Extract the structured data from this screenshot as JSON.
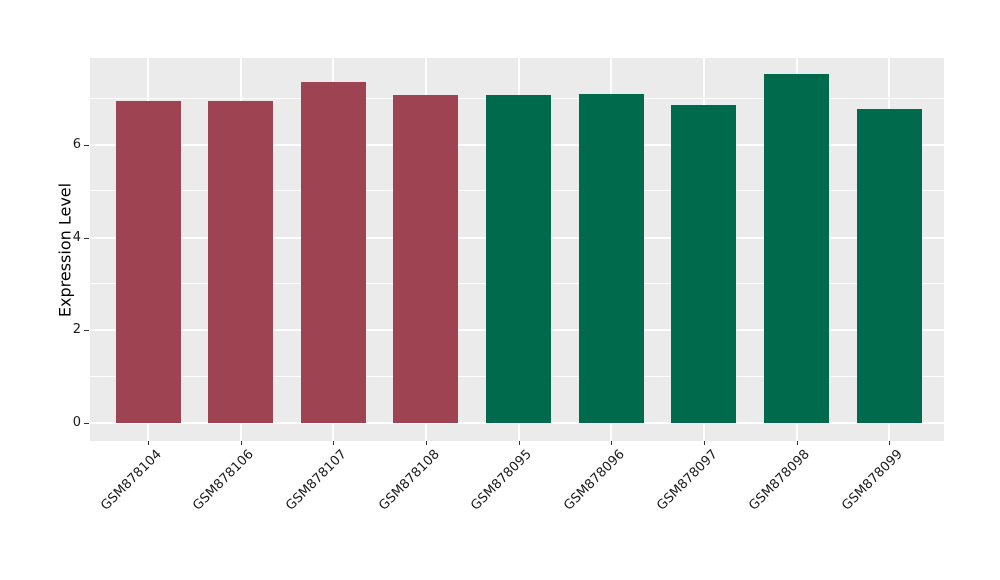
{
  "figure": {
    "background": "#ffffff",
    "panel_background": "#ebebeb",
    "grid_color": "#ffffff",
    "tick_color": "#333333",
    "text_color": "#1a1a1a"
  },
  "chart_data": {
    "type": "bar",
    "title": "",
    "xlabel": "",
    "ylabel": "Expression Level",
    "categories": [
      "GSM878104",
      "GSM878106",
      "GSM878107",
      "GSM878108",
      "GSM878095",
      "GSM878096",
      "GSM878097",
      "GSM878098",
      "GSM878099"
    ],
    "values": [
      6.96,
      6.96,
      7.37,
      7.08,
      7.09,
      7.1,
      6.87,
      7.53,
      6.78
    ],
    "bar_colors": [
      "#9e4352",
      "#9e4352",
      "#9e4352",
      "#9e4352",
      "#006b4c",
      "#006b4c",
      "#006b4c",
      "#006b4c",
      "#006b4c"
    ],
    "palette": {
      "maroon": "#9e4352",
      "green": "#006b4c"
    },
    "yticks": [
      0,
      2,
      4,
      6
    ],
    "minor_gridlines": [
      1,
      3,
      5,
      7
    ],
    "ylim": [
      -0.39,
      7.88
    ],
    "bar_width_fraction": 0.7,
    "grid": "on",
    "legend": "none",
    "x_label_angle_degrees": 45
  }
}
